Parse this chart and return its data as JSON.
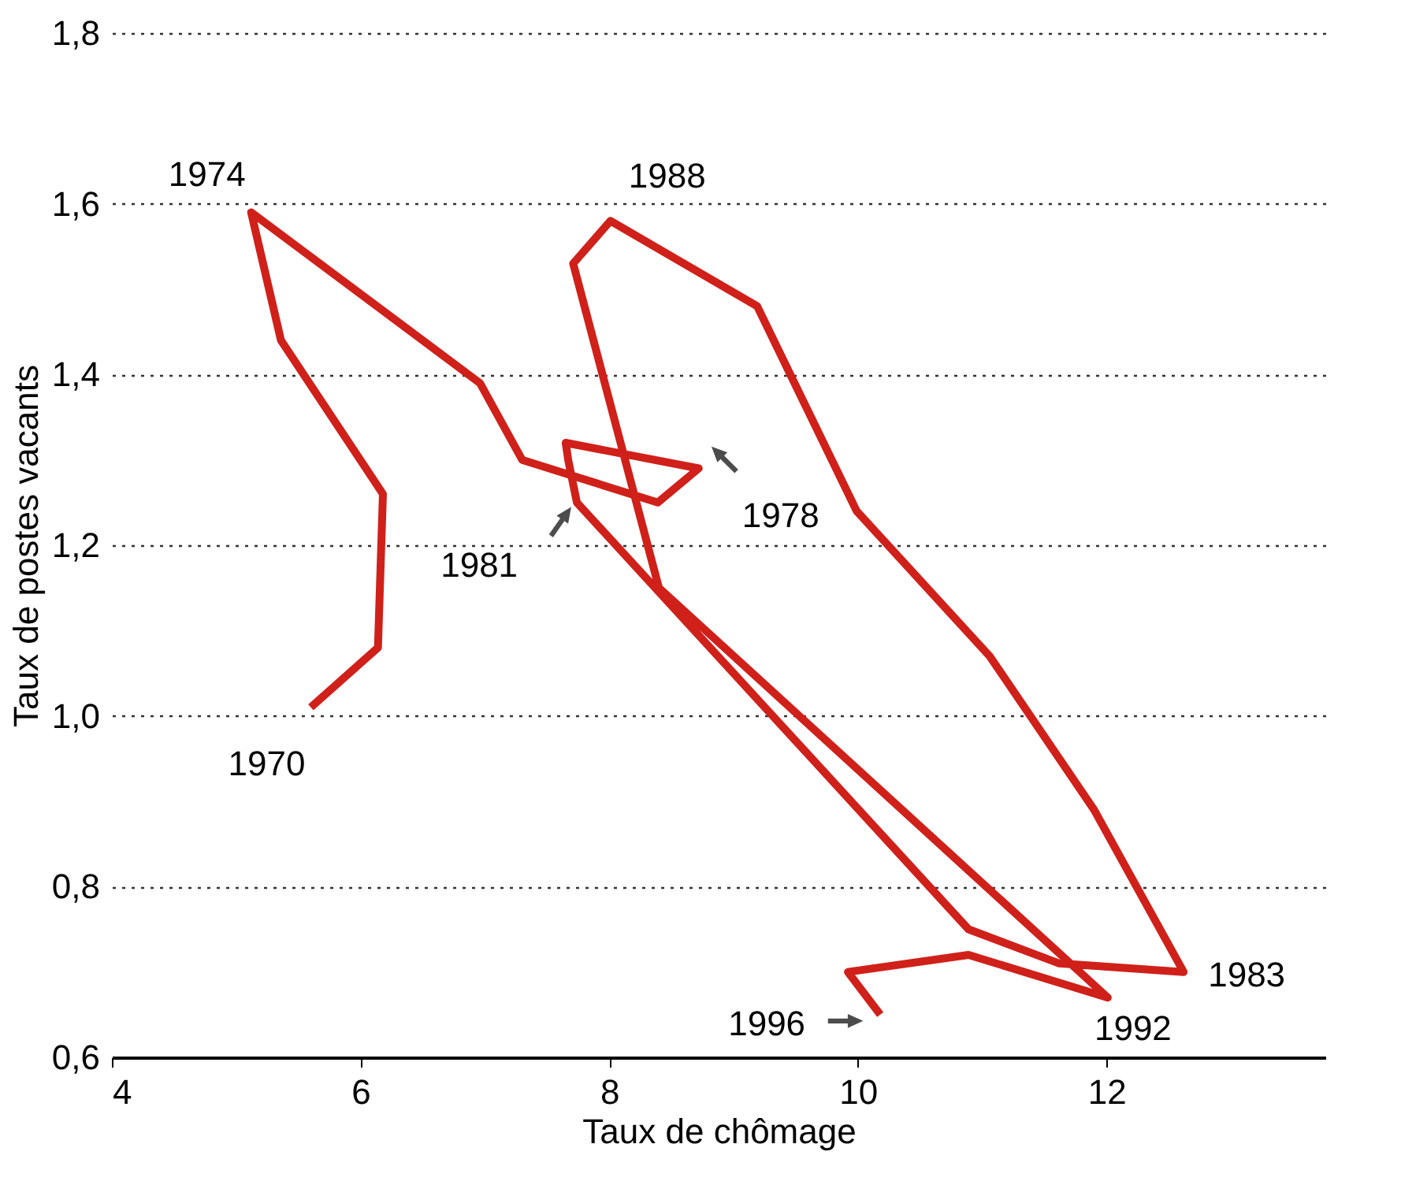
{
  "chart_data": {
    "type": "line",
    "xlabel": "Taux de chômage",
    "ylabel": "Taux de postes vacants",
    "x": [
      5.6,
      6.14,
      6.18,
      5.36,
      5.12,
      6.96,
      7.3,
      8.39,
      8.72,
      7.65,
      7.67,
      7.74,
      10.89,
      11.62,
      12.62,
      11.9,
      11.06,
      9.99,
      9.19,
      8.01,
      7.71,
      8.4,
      12.01,
      10.89,
      9.92,
      10.18
    ],
    "series": [
      {
        "color": "#d0201a",
        "values": [
          1.01,
          1.08,
          1.26,
          1.44,
          1.59,
          1.39,
          1.3,
          1.25,
          1.29,
          1.32,
          1.3,
          1.25,
          0.75,
          0.71,
          0.7,
          0.89,
          1.07,
          1.24,
          1.48,
          1.58,
          1.53,
          1.15,
          0.67,
          0.72,
          0.7,
          0.65
        ]
      }
    ],
    "xlim": [
      4,
      13.76
    ],
    "xticks": [
      4,
      6,
      8,
      10,
      12
    ],
    "ylim": [
      0.6,
      1.8
    ],
    "yticks": [
      {
        "value": 0.6,
        "label": "0,6"
      },
      {
        "value": 0.8,
        "label": "0,8"
      },
      {
        "value": 1.0,
        "label": "1,0"
      },
      {
        "value": 1.2,
        "label": "1,2"
      },
      {
        "value": 1.4,
        "label": "1,4"
      },
      {
        "value": 1.6,
        "label": "1,6"
      },
      {
        "value": 1.8,
        "label": "1,8"
      }
    ],
    "grid": "y",
    "marker": "none",
    "line_style": "solid",
    "annotations": [
      {
        "text": "1970",
        "x": 5.6,
        "y": 1.01
      },
      {
        "text": "1974",
        "x": 5.12,
        "y": 1.59
      },
      {
        "text": "1978",
        "x": 8.72,
        "y": 1.29
      },
      {
        "text": "1981",
        "x": 7.74,
        "y": 1.25
      },
      {
        "text": "1983",
        "x": 12.62,
        "y": 0.7
      },
      {
        "text": "1988",
        "x": 8.01,
        "y": 1.58
      },
      {
        "text": "1992",
        "x": 12.01,
        "y": 0.67
      },
      {
        "text": "1996",
        "x": 10.18,
        "y": 0.65
      }
    ]
  }
}
